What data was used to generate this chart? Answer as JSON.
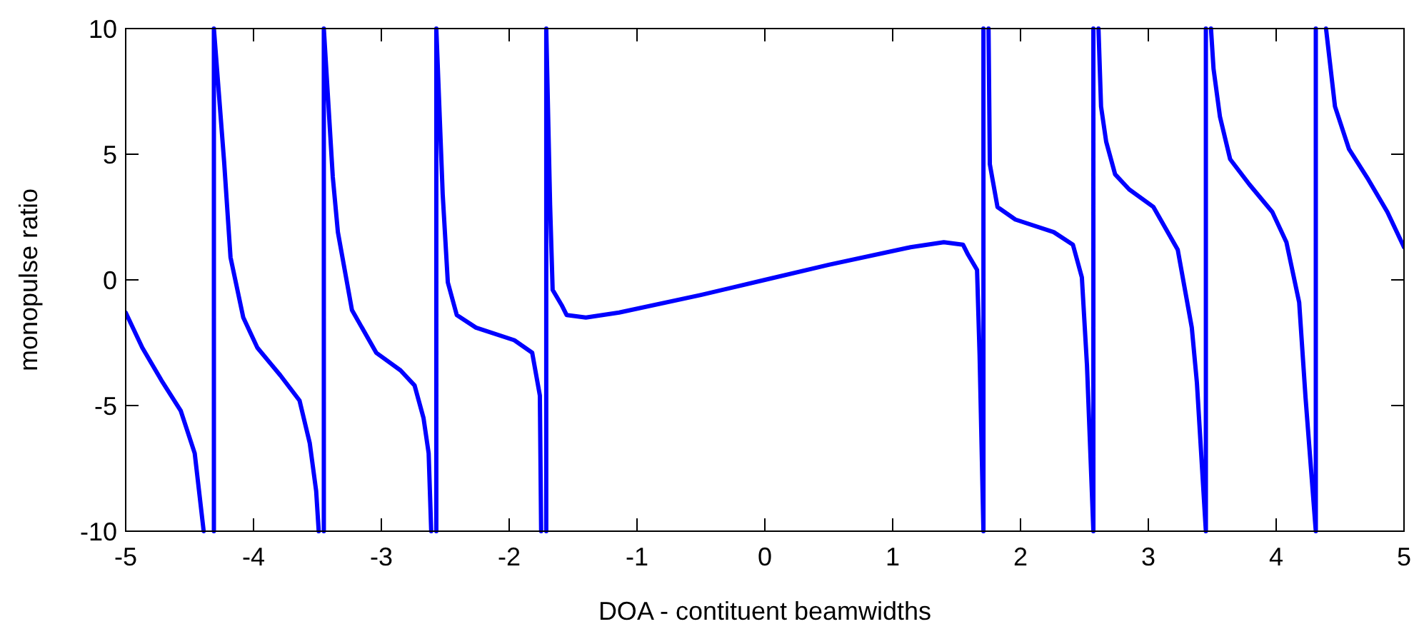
{
  "chart_data": {
    "type": "line",
    "xlabel": "DOA - contituent beamwidths",
    "ylabel": "monopulse ratio",
    "xlim": [
      -5,
      5
    ],
    "ylim": [
      -10,
      10
    ],
    "xticks": [
      -5,
      -4,
      -3,
      -2,
      -1,
      0,
      1,
      2,
      3,
      4,
      5
    ],
    "yticks": [
      -10,
      -5,
      0,
      5,
      10
    ],
    "grid": false,
    "line_style": "solid",
    "marker": "none",
    "series": [
      {
        "color": "#0000ff",
        "x": [
          -5,
          -4.87,
          -4.72,
          -4.57,
          -4.46,
          -4.39,
          -4.35,
          -4.31,
          -4.31,
          -4.23,
          -4.18,
          -4.08,
          -3.97,
          -3.79,
          -3.64,
          -3.56,
          -3.51,
          -3.49,
          -3.47,
          -3.45,
          -3.45,
          -3.38,
          -3.34,
          -3.23,
          -3.04,
          -2.85,
          -2.74,
          -2.67,
          -2.63,
          -2.61,
          -2.59,
          -2.57,
          -2.57,
          -2.52,
          -2.48,
          -2.41,
          -2.26,
          -1.96,
          -1.82,
          -1.76,
          -1.75,
          -1.73,
          -1.71,
          -1.71,
          -1.68,
          -1.66,
          -1.59,
          -1.55,
          -1.4,
          -1.14,
          -0.5,
          0,
          0.5,
          1.14,
          1.4,
          1.55,
          1.59,
          1.66,
          1.68,
          1.71,
          1.71,
          1.73,
          1.75,
          1.76,
          1.82,
          1.96,
          2.26,
          2.41,
          2.48,
          2.52,
          2.57,
          2.57,
          2.59,
          2.61,
          2.63,
          2.67,
          2.74,
          2.85,
          3.04,
          3.23,
          3.34,
          3.38,
          3.45,
          3.45,
          3.47,
          3.49,
          3.51,
          3.56,
          3.64,
          3.79,
          3.97,
          4.08,
          4.18,
          4.23,
          4.31,
          4.31,
          4.35,
          4.39,
          4.46,
          4.57,
          4.72,
          4.87,
          5
        ],
        "values": [
          -1.3,
          -2.7,
          -4.0,
          -5.2,
          -6.9,
          -10,
          null,
          -10,
          10,
          4.7,
          0.9,
          -1.5,
          -2.7,
          -3.8,
          -4.8,
          -6.5,
          -8.4,
          -10,
          null,
          -10,
          10,
          4.1,
          1.9,
          -1.2,
          -2.9,
          -3.6,
          -4.2,
          -5.5,
          -6.9,
          -10,
          null,
          -10,
          10,
          3.4,
          -0.1,
          -1.4,
          -1.9,
          -2.4,
          -2.9,
          -4.6,
          -10,
          null,
          -10,
          10,
          3.0,
          -0.4,
          -1.0,
          -1.4,
          -1.5,
          -1.3,
          -0.6,
          0,
          0.6,
          1.3,
          1.5,
          1.4,
          1.0,
          0.4,
          -3.0,
          -10,
          10,
          null,
          10,
          4.6,
          2.9,
          2.4,
          1.9,
          1.4,
          0.1,
          -3.4,
          -10,
          10,
          null,
          10,
          6.9,
          5.5,
          4.2,
          3.6,
          2.9,
          1.2,
          -1.9,
          -4.1,
          -10,
          10,
          null,
          10,
          8.4,
          6.5,
          4.8,
          3.8,
          2.7,
          1.5,
          -0.9,
          -4.7,
          -10,
          10,
          null,
          10,
          6.9,
          5.2,
          4.0,
          2.7,
          1.3
        ]
      }
    ]
  }
}
